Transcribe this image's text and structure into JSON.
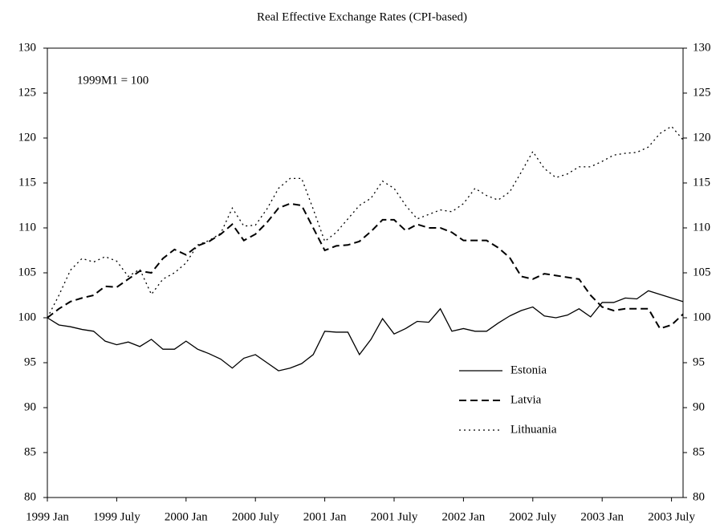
{
  "chart_data": {
    "type": "line",
    "title": "Real Effective Exchange Rates (CPI-based)",
    "annotation": "1999M1 = 100",
    "categories": [
      "1999 Jan",
      null,
      null,
      null,
      null,
      null,
      "1999 July",
      null,
      null,
      null,
      null,
      null,
      "2000 Jan",
      null,
      null,
      null,
      null,
      null,
      "2000 July",
      null,
      null,
      null,
      null,
      null,
      "2001 Jan",
      null,
      null,
      null,
      null,
      null,
      "2001 July",
      null,
      null,
      null,
      null,
      null,
      "2002 Jan",
      null,
      null,
      null,
      null,
      null,
      "2002 July",
      null,
      null,
      null,
      null,
      null,
      "2003 Jan",
      null,
      null,
      null,
      null,
      null,
      "2003 July",
      null
    ],
    "series": [
      {
        "name": "Estonia",
        "color": "#000000",
        "style": "solid",
        "values": [
          100,
          99.2,
          99.0,
          98.7,
          98.5,
          97.4,
          97.0,
          97.3,
          96.8,
          97.6,
          96.5,
          96.5,
          97.4,
          96.5,
          96.0,
          95.4,
          94.4,
          95.5,
          95.9,
          95.0,
          94.1,
          94.4,
          94.9,
          95.9,
          98.5,
          98.4,
          98.4,
          95.9,
          97.6,
          99.9,
          98.2,
          98.8,
          99.6,
          99.5,
          101.0,
          98.5,
          98.8,
          98.5,
          98.5,
          99.4,
          100.2,
          100.8,
          101.2,
          100.2,
          100.0,
          100.3,
          101.0,
          100.1,
          101.7,
          101.7,
          102.2,
          102.1,
          103.0,
          102.6,
          102.2,
          101.8
        ]
      },
      {
        "name": "Latvia",
        "color": "#000000",
        "style": "dash",
        "values": [
          100,
          101.0,
          101.8,
          102.2,
          102.5,
          103.5,
          103.4,
          104.3,
          105.2,
          105.0,
          106.6,
          107.6,
          107.0,
          108.0,
          108.5,
          109.3,
          110.4,
          108.6,
          109.3,
          110.6,
          112.2,
          112.7,
          112.5,
          110.0,
          107.5,
          108.0,
          108.1,
          108.5,
          109.6,
          110.9,
          110.9,
          109.7,
          110.4,
          110.0,
          110.0,
          109.5,
          108.6,
          108.6,
          108.6,
          107.8,
          106.7,
          104.6,
          104.3,
          104.9,
          104.7,
          104.5,
          104.3,
          102.5,
          101.2,
          100.8,
          101.0,
          101.0,
          101.0,
          98.8,
          99.2,
          100.4
        ]
      },
      {
        "name": "Lithuania",
        "color": "#000000",
        "style": "dot",
        "values": [
          100,
          102.5,
          105.3,
          106.6,
          106.2,
          106.8,
          106.3,
          104.6,
          105.4,
          102.6,
          104.3,
          105.0,
          106.1,
          108.1,
          108.6,
          109.4,
          112.2,
          110.2,
          110.3,
          112.1,
          114.4,
          115.5,
          115.5,
          112.1,
          108.5,
          109.5,
          111.0,
          112.5,
          113.3,
          115.2,
          114.4,
          112.5,
          111.0,
          111.5,
          112.0,
          111.8,
          112.7,
          114.4,
          113.6,
          113.1,
          114.0,
          116.2,
          118.5,
          116.6,
          115.6,
          116.0,
          116.8,
          116.8,
          117.4,
          118.1,
          118.3,
          118.4,
          119.0,
          120.5,
          121.3,
          119.8
        ]
      }
    ],
    "ylim": [
      80,
      130
    ],
    "yticks": [
      80,
      85,
      90,
      95,
      100,
      105,
      110,
      115,
      120,
      125,
      130
    ],
    "y2lim": [
      80,
      130
    ],
    "y2ticks": [
      80,
      85,
      90,
      95,
      100,
      105,
      110,
      115,
      120,
      125,
      130
    ],
    "grid": false,
    "legend": "lower-right"
  }
}
